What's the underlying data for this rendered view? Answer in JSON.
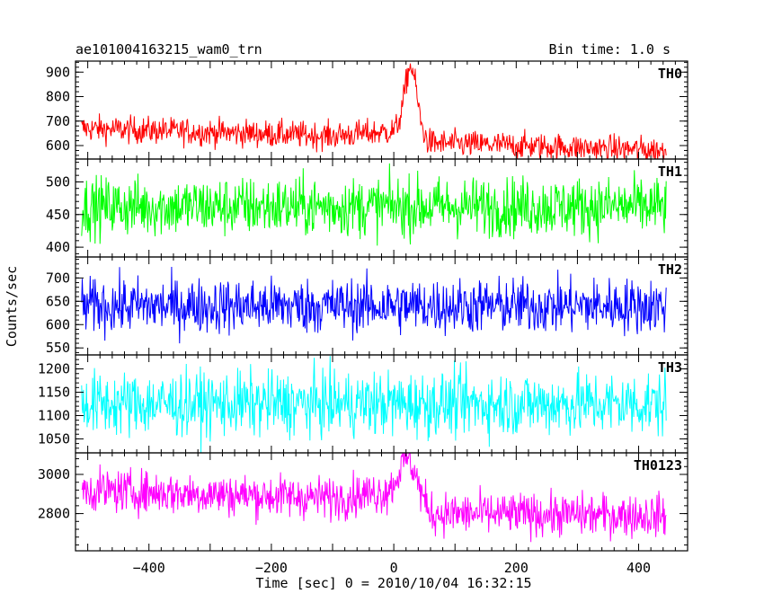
{
  "header": {
    "title": "ae101004163215_wam0_trn",
    "bin_time": "Bin time: 1.0 s"
  },
  "chart_data": {
    "type": "line",
    "xlabel": "Time [sec] 0 = 2010/10/04 16:32:15",
    "ylabel": "Counts/sec",
    "xlim": [
      -520,
      480
    ],
    "xticks": [
      -400,
      -200,
      0,
      200,
      400
    ],
    "x_range": [
      -510,
      445
    ],
    "bin_time_s": 1.0,
    "panels": [
      {
        "name": "TH0",
        "color": "#ff0000",
        "ylim": [
          545,
          945
        ],
        "yticks": [
          600,
          700,
          800,
          900
        ],
        "baseline": [
          [
            -510,
            670
          ],
          [
            -100,
            640
          ],
          [
            10,
            660
          ],
          [
            60,
            610
          ],
          [
            200,
            600
          ],
          [
            445,
            580
          ]
        ],
        "noise": 28,
        "peak": {
          "center": 28,
          "amplitude": 280,
          "width": 10
        },
        "description": "burst peak near t=28 s"
      },
      {
        "name": "TH1",
        "color": "#00ff00",
        "ylim": [
          385,
          535
        ],
        "yticks": [
          400,
          450,
          500
        ],
        "baseline": [
          [
            -510,
            462
          ],
          [
            445,
            462
          ]
        ],
        "noise": 23
      },
      {
        "name": "TH2",
        "color": "#0000ff",
        "ylim": [
          535,
          745
        ],
        "yticks": [
          550,
          600,
          650,
          700
        ],
        "baseline": [
          [
            -510,
            640
          ],
          [
            445,
            640
          ]
        ],
        "noise": 30
      },
      {
        "name": "TH3",
        "color": "#00ffff",
        "ylim": [
          1020,
          1230
        ],
        "yticks": [
          1050,
          1100,
          1150,
          1200
        ],
        "baseline": [
          [
            -510,
            1125
          ],
          [
            445,
            1125
          ]
        ],
        "noise": 35
      },
      {
        "name": "TH0123",
        "color": "#ff00ff",
        "ylim": [
          2610,
          3110
        ],
        "yticks": [
          2800,
          3000
        ],
        "baseline": [
          [
            -510,
            2920
          ],
          [
            -100,
            2880
          ],
          [
            10,
            2920
          ],
          [
            60,
            2800
          ],
          [
            445,
            2790
          ]
        ],
        "noise": 55,
        "peak": {
          "center": 25,
          "amplitude": 190,
          "width": 14
        },
        "description": "burst peak near t=25 s"
      }
    ]
  }
}
